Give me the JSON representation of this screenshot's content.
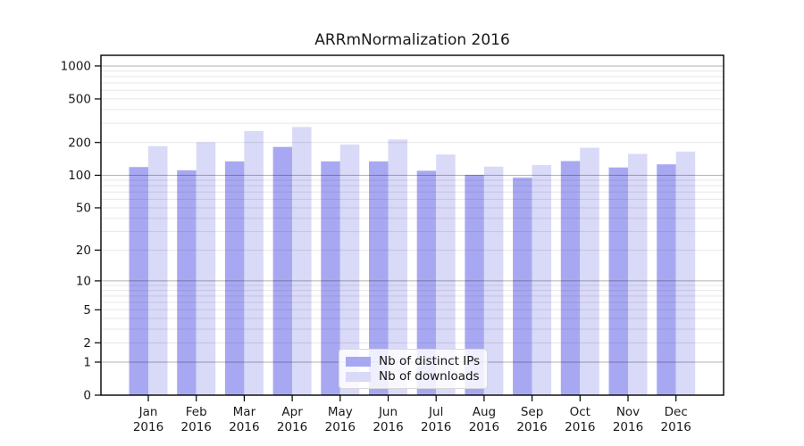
{
  "chart_data": {
    "type": "bar",
    "title": "ARRmNormalization 2016",
    "categories": [
      "Jan",
      "Feb",
      "Mar",
      "Apr",
      "May",
      "Jun",
      "Jul",
      "Aug",
      "Sep",
      "Oct",
      "Nov",
      "Dec"
    ],
    "category_year": "2016",
    "series": [
      {
        "name": "Nb of distinct IPs",
        "color": "#a8a8f2",
        "values": [
          119,
          111,
          134,
          182,
          134,
          134,
          110,
          101,
          95,
          135,
          118,
          126
        ]
      },
      {
        "name": "Nb of downloads",
        "color": "#d9d9f8",
        "values": [
          185,
          201,
          254,
          277,
          191,
          213,
          155,
          120,
          124,
          179,
          157,
          165
        ]
      }
    ],
    "yscale": "log10(value+1)",
    "yticks": [
      0,
      1,
      2,
      5,
      10,
      20,
      50,
      100,
      200,
      500,
      1000
    ],
    "ylim": [
      0,
      1250
    ],
    "grid": true,
    "legend_position": "inside-bottom-center"
  },
  "colors": {
    "grid_major_rgba": "rgba(0,0,0,0.30)",
    "grid_minor_rgba": "rgba(0,0,0,0.095)",
    "axis_frame": "#000000",
    "tick_text": "#1a1a1a",
    "title_text": "#1a1a1a",
    "legend_bg": "rgba(255,255,255,0.82)",
    "legend_border": "#d9d9d9"
  }
}
